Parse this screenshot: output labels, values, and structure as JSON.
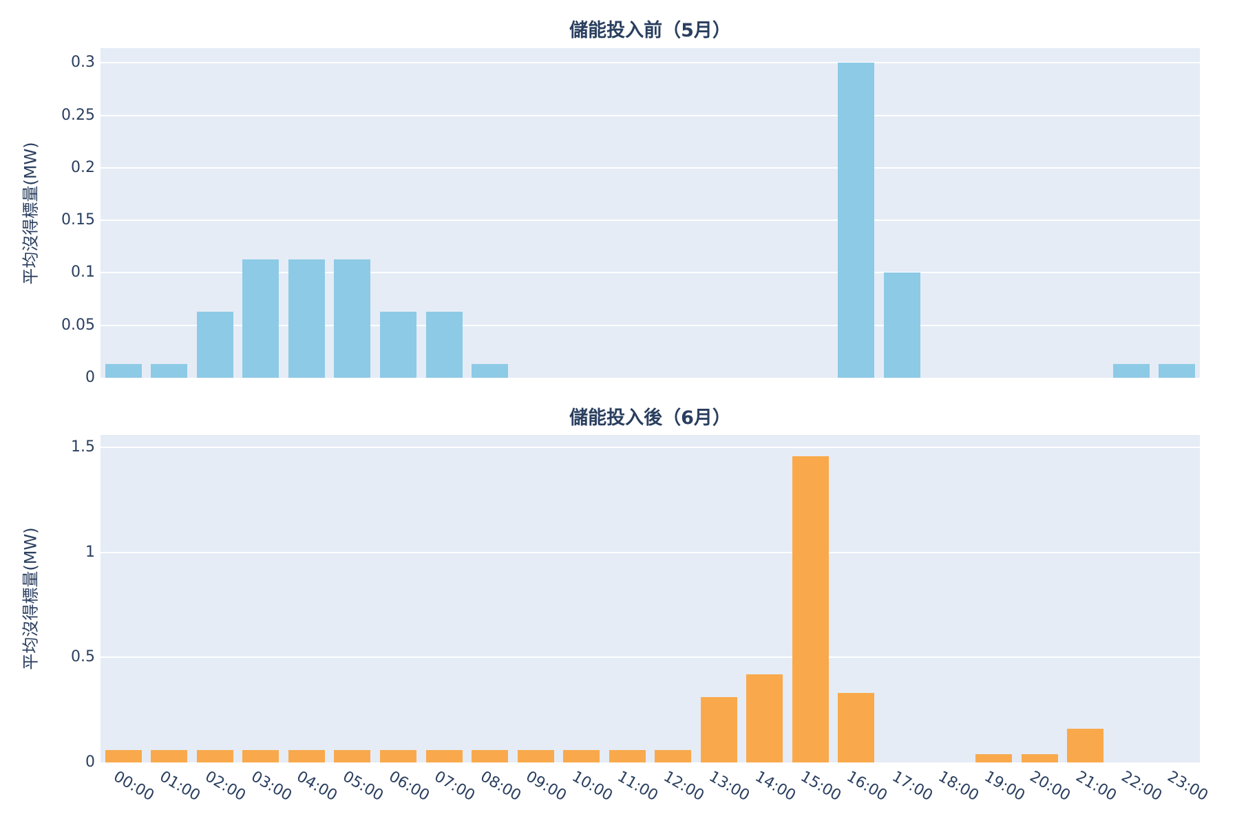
{
  "colors": {
    "text": "#2a3f5f",
    "figure_bg": "#ffffff",
    "plot_bg": "#E5ECF6",
    "grid": "#ffffff",
    "bar_before": "#8DCAE6",
    "bar_after": "#F9A94B"
  },
  "chart_data": [
    {
      "type": "bar",
      "title": "儲能投入前（5月）",
      "ylabel": "平均沒得標量(MW)",
      "xlabel": "",
      "categories": [
        "00:00",
        "01:00",
        "02:00",
        "03:00",
        "04:00",
        "05:00",
        "06:00",
        "07:00",
        "08:00",
        "09:00",
        "10:00",
        "11:00",
        "12:00",
        "13:00",
        "14:00",
        "15:00",
        "16:00",
        "17:00",
        "18:00",
        "19:00",
        "20:00",
        "21:00",
        "22:00",
        "23:00"
      ],
      "values": [
        0.013,
        0.013,
        0.063,
        0.113,
        0.113,
        0.113,
        0.063,
        0.063,
        0.013,
        0,
        0,
        0,
        0,
        0,
        0,
        0,
        0.3,
        0.1,
        0,
        0,
        0,
        0,
        0.013,
        0.013
      ],
      "ylim": [
        0,
        0.314
      ],
      "yticks": [
        {
          "v": 0,
          "label": "0"
        },
        {
          "v": 0.05,
          "label": "0.05"
        },
        {
          "v": 0.1,
          "label": "0.1"
        },
        {
          "v": 0.15,
          "label": "0.15"
        },
        {
          "v": 0.2,
          "label": "0.2"
        },
        {
          "v": 0.25,
          "label": "0.25"
        },
        {
          "v": 0.3,
          "label": "0.3"
        }
      ],
      "bar_color": "#8DCAE6",
      "grid": "on",
      "legend": "none",
      "x_tick_angle": 30,
      "x_ticks_shown": false
    },
    {
      "type": "bar",
      "title": "儲能投入後（6月）",
      "ylabel": "平均沒得標量(MW)",
      "xlabel": "",
      "categories": [
        "00:00",
        "01:00",
        "02:00",
        "03:00",
        "04:00",
        "05:00",
        "06:00",
        "07:00",
        "08:00",
        "09:00",
        "10:00",
        "11:00",
        "12:00",
        "13:00",
        "14:00",
        "15:00",
        "16:00",
        "17:00",
        "18:00",
        "19:00",
        "20:00",
        "21:00",
        "22:00",
        "23:00"
      ],
      "values": [
        0.06,
        0.06,
        0.06,
        0.06,
        0.06,
        0.06,
        0.06,
        0.06,
        0.06,
        0.06,
        0.06,
        0.06,
        0.06,
        0.31,
        0.42,
        1.46,
        0.33,
        0,
        0,
        0.04,
        0.04,
        0.16,
        0,
        0
      ],
      "ylim": [
        0,
        1.56
      ],
      "yticks": [
        {
          "v": 0,
          "label": "0"
        },
        {
          "v": 0.5,
          "label": "0.5"
        },
        {
          "v": 1,
          "label": "1"
        },
        {
          "v": 1.5,
          "label": "1.5"
        }
      ],
      "bar_color": "#F9A94B",
      "grid": "on",
      "legend": "none",
      "x_tick_angle": 30,
      "x_ticks_shown": true
    }
  ]
}
